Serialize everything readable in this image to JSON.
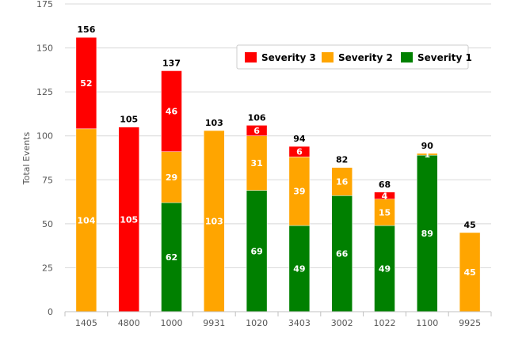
{
  "chart_data": {
    "type": "bar",
    "stacked": true,
    "ylabel": "Total Events",
    "xlabel": "",
    "title": "",
    "ylim": [
      0,
      175
    ],
    "yticks": [
      0,
      25,
      50,
      75,
      100,
      125,
      150,
      175
    ],
    "grid": true,
    "legend_position": "top-right",
    "categories": [
      "1405",
      "4800",
      "1000",
      "9931",
      "1020",
      "3403",
      "3002",
      "1022",
      "1100",
      "9925"
    ],
    "totals": [
      156,
      105,
      137,
      103,
      106,
      94,
      82,
      68,
      90,
      45
    ],
    "series": [
      {
        "name": "Severity 1",
        "color": "#008000",
        "values": [
          0,
          0,
          62,
          0,
          69,
          49,
          66,
          49,
          89,
          0
        ]
      },
      {
        "name": "Severity 2",
        "color": "#FFA500",
        "values": [
          104,
          0,
          29,
          103,
          31,
          39,
          16,
          15,
          1,
          45
        ]
      },
      {
        "name": "Severity 3",
        "color": "#FF0000",
        "values": [
          52,
          105,
          46,
          0,
          6,
          6,
          0,
          4,
          0,
          0
        ]
      }
    ],
    "legend_order": [
      "Severity 3",
      "Severity 2",
      "Severity 1"
    ]
  }
}
